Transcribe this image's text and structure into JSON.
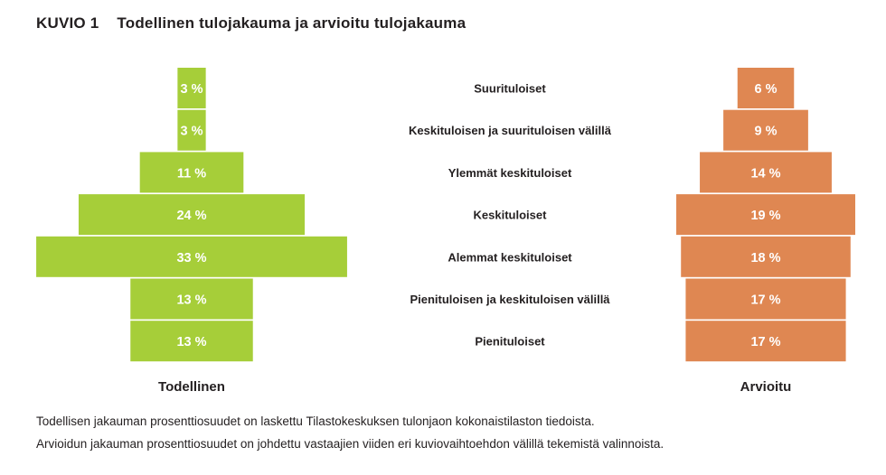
{
  "figure_label": "KUVIO 1",
  "chart_data": {
    "type": "bar",
    "subtype": "population-pyramid",
    "title": "Todellinen tulojakauma ja arvioitu tulojakauma",
    "categories": [
      "Suurituloiset",
      "Keskituloisen ja suurituloisen välillä",
      "Ylemmät keskituloiset",
      "Keskituloiset",
      "Alemmat keskituloiset",
      "Pienituloisen ja keskituloisen välillä",
      "Pienituloiset"
    ],
    "series": [
      {
        "name": "Todellinen",
        "color": "#a6ce39",
        "values": [
          3,
          3,
          11,
          24,
          33,
          13,
          13
        ]
      },
      {
        "name": "Arvioitu",
        "color": "#df8752",
        "values": [
          6,
          9,
          14,
          19,
          18,
          17,
          17
        ]
      }
    ],
    "value_suffix": " %",
    "xlabel": "",
    "ylabel": ""
  },
  "notes": [
    "Todellisen jakauman prosenttiosuudet on laskettu Tilastokeskuksen tulonjaon kokonaistilaston tiedoista.",
    "Arvioidun jakauman prosenttiosuudet on johdettu vastaajien viiden eri kuviovaihtoehdon välillä tekemistä valinnoista."
  ]
}
